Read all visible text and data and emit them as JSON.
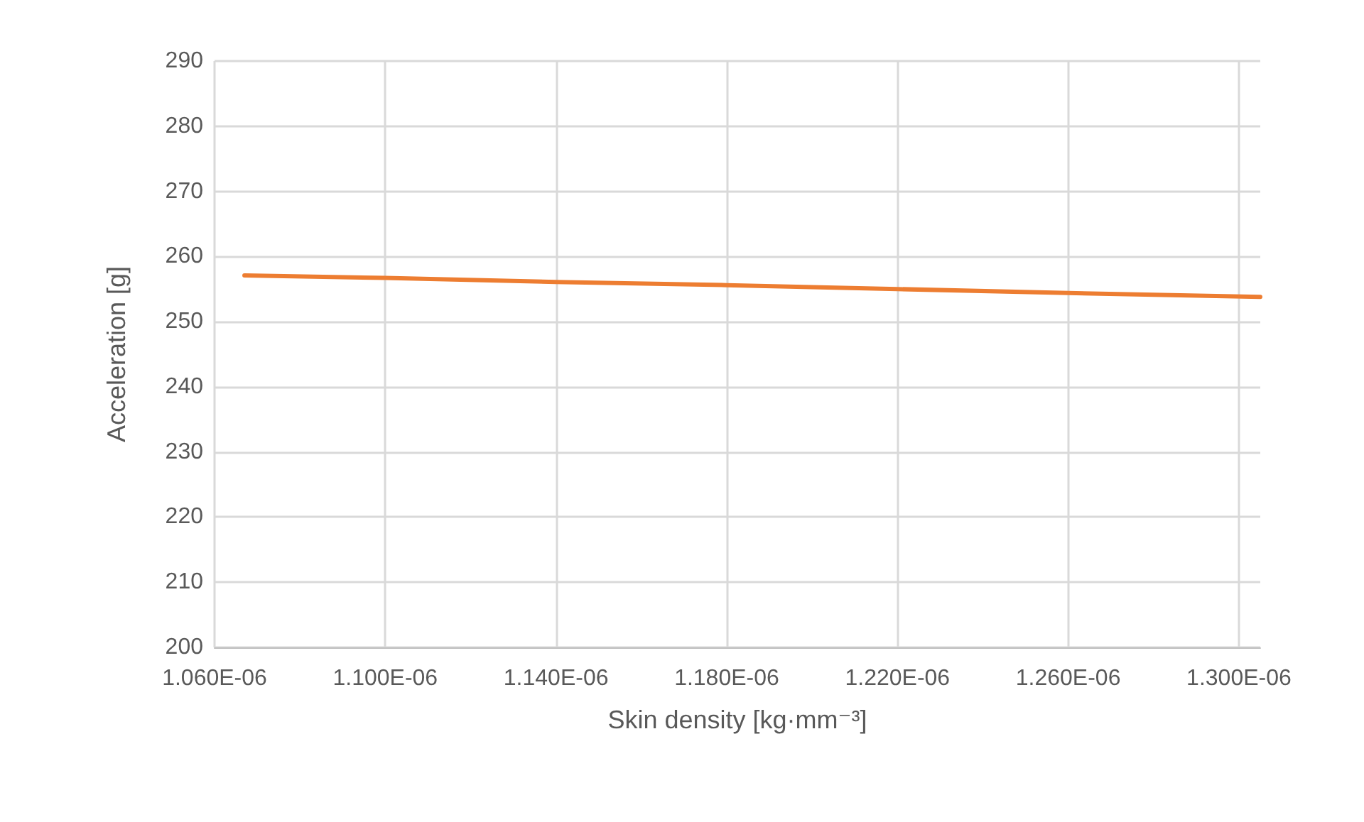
{
  "chart_data": {
    "type": "line",
    "xlabel": "Skin density [kg·mm⁻³]",
    "ylabel": "Acceleration [g]",
    "x": [
      1.067e-06,
      1.1e-06,
      1.14e-06,
      1.18e-06,
      1.22e-06,
      1.26e-06,
      1.305e-06
    ],
    "series": [
      {
        "color": "#ed7d31",
        "values": [
          257.1,
          256.7,
          256.1,
          255.6,
          255.0,
          254.4,
          253.8
        ]
      }
    ],
    "xlim": [
      1.06e-06,
      1.305e-06
    ],
    "xticks": [
      {
        "value": 1.06e-06,
        "label": "1.060E-06"
      },
      {
        "value": 1.1e-06,
        "label": "1.100E-06"
      },
      {
        "value": 1.14e-06,
        "label": "1.140E-06"
      },
      {
        "value": 1.18e-06,
        "label": "1.180E-06"
      },
      {
        "value": 1.22e-06,
        "label": "1.220E-06"
      },
      {
        "value": 1.26e-06,
        "label": "1.260E-06"
      },
      {
        "value": 1.3e-06,
        "label": "1.300E-06"
      }
    ],
    "ylim": [
      200,
      290
    ],
    "yticks": [
      200,
      210,
      220,
      230,
      240,
      250,
      260,
      270,
      280,
      290
    ],
    "grid": true,
    "marker": "none",
    "line_style": "solid"
  }
}
